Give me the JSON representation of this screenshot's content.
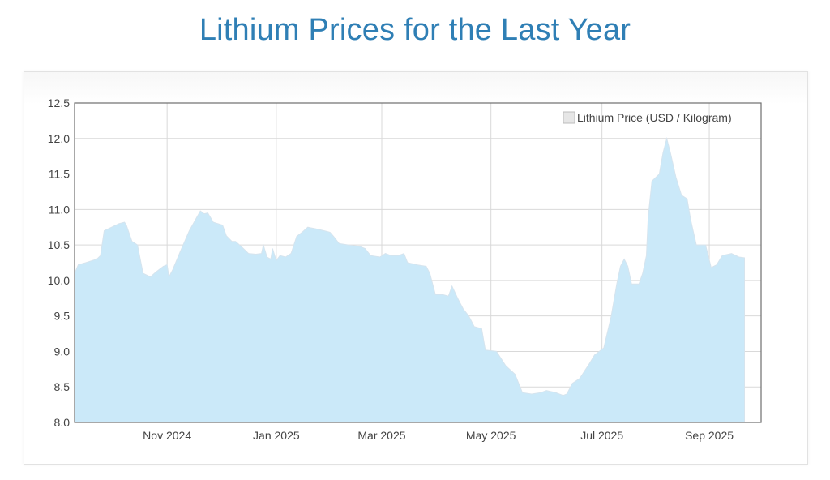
{
  "page": {
    "title": "Lithium Prices for the Last Year"
  },
  "colors": {
    "title": "#2f7fb5",
    "area_fill": "#cbe9f9",
    "area_stroke": "#d6e4ee",
    "grid": "#d9d9d9",
    "frame": "#6e6e6e"
  },
  "chart_data": {
    "type": "area",
    "title": "Lithium Prices for the Last Year",
    "xlabel": "",
    "ylabel": "",
    "x_unit": "days since 2024-10-01",
    "xlim": [
      0,
      371
    ],
    "ylim": [
      8.0,
      12.5
    ],
    "grid": true,
    "legend_position": "top-right",
    "y_ticks": [
      "12.5",
      "12.0",
      "11.5",
      "11.0",
      "10.5",
      "10.0",
      "9.5",
      "9.0",
      "8.5",
      "8.0"
    ],
    "y_tick_values": [
      12.5,
      12.0,
      11.5,
      11.0,
      10.5,
      10.0,
      9.5,
      9.0,
      8.5,
      8.0
    ],
    "x_ticks": [
      {
        "label": "Nov 2024",
        "x": 50
      },
      {
        "label": "Jan 2025",
        "x": 109
      },
      {
        "label": "Mar 2025",
        "x": 166
      },
      {
        "label": "May 2025",
        "x": 225
      },
      {
        "label": "Jul 2025",
        "x": 285
      },
      {
        "label": "Sep 2025",
        "x": 343
      }
    ],
    "series": [
      {
        "name": "Lithium Price (USD / Kilogram)",
        "points": [
          [
            0,
            10.1
          ],
          [
            2,
            10.22
          ],
          [
            6,
            10.25
          ],
          [
            12,
            10.3
          ],
          [
            14,
            10.35
          ],
          [
            16,
            10.7
          ],
          [
            20,
            10.75
          ],
          [
            24,
            10.8
          ],
          [
            27,
            10.82
          ],
          [
            28,
            10.78
          ],
          [
            31,
            10.55
          ],
          [
            34,
            10.5
          ],
          [
            37,
            10.1
          ],
          [
            41,
            10.05
          ],
          [
            44,
            10.12
          ],
          [
            48,
            10.2
          ],
          [
            50,
            10.22
          ],
          [
            51,
            10.05
          ],
          [
            53,
            10.15
          ],
          [
            57,
            10.4
          ],
          [
            62,
            10.7
          ],
          [
            68,
            10.98
          ],
          [
            70,
            10.94
          ],
          [
            72,
            10.95
          ],
          [
            75,
            10.82
          ],
          [
            80,
            10.78
          ],
          [
            82,
            10.63
          ],
          [
            85,
            10.55
          ],
          [
            87,
            10.55
          ],
          [
            90,
            10.48
          ],
          [
            94,
            10.38
          ],
          [
            98,
            10.37
          ],
          [
            101,
            10.38
          ],
          [
            102,
            10.5
          ],
          [
            104,
            10.33
          ],
          [
            106,
            10.3
          ],
          [
            107,
            10.45
          ],
          [
            109,
            10.28
          ],
          [
            111,
            10.35
          ],
          [
            114,
            10.33
          ],
          [
            117,
            10.38
          ],
          [
            120,
            10.62
          ],
          [
            123,
            10.68
          ],
          [
            126,
            10.75
          ],
          [
            130,
            10.73
          ],
          [
            135,
            10.7
          ],
          [
            138,
            10.68
          ],
          [
            140,
            10.62
          ],
          [
            143,
            10.52
          ],
          [
            148,
            10.5
          ],
          [
            154,
            10.48
          ],
          [
            157,
            10.45
          ],
          [
            160,
            10.35
          ],
          [
            165,
            10.33
          ],
          [
            168,
            10.38
          ],
          [
            171,
            10.35
          ],
          [
            175,
            10.35
          ],
          [
            178,
            10.38
          ],
          [
            180,
            10.25
          ],
          [
            185,
            10.22
          ],
          [
            190,
            10.2
          ],
          [
            192,
            10.1
          ],
          [
            195,
            9.8
          ],
          [
            199,
            9.8
          ],
          [
            202,
            9.78
          ],
          [
            204,
            9.92
          ],
          [
            207,
            9.75
          ],
          [
            210,
            9.6
          ],
          [
            213,
            9.5
          ],
          [
            216,
            9.35
          ],
          [
            220,
            9.32
          ],
          [
            222,
            9.02
          ],
          [
            228,
            9.0
          ],
          [
            233,
            8.8
          ],
          [
            235,
            8.75
          ],
          [
            238,
            8.68
          ],
          [
            242,
            8.42
          ],
          [
            247,
            8.4
          ],
          [
            252,
            8.42
          ],
          [
            255,
            8.45
          ],
          [
            260,
            8.42
          ],
          [
            264,
            8.38
          ],
          [
            266,
            8.4
          ],
          [
            269,
            8.55
          ],
          [
            273,
            8.62
          ],
          [
            278,
            8.82
          ],
          [
            281,
            8.95
          ],
          [
            286,
            9.05
          ],
          [
            290,
            9.5
          ],
          [
            293,
            9.95
          ],
          [
            295,
            10.2
          ],
          [
            297,
            10.3
          ],
          [
            299,
            10.2
          ],
          [
            301,
            9.95
          ],
          [
            305,
            9.95
          ],
          [
            307,
            10.1
          ],
          [
            309,
            10.35
          ],
          [
            310,
            10.9
          ],
          [
            312,
            11.4
          ],
          [
            316,
            11.5
          ],
          [
            318,
            11.8
          ],
          [
            320,
            12.0
          ],
          [
            322,
            11.8
          ],
          [
            325,
            11.45
          ],
          [
            328,
            11.2
          ],
          [
            331,
            11.15
          ],
          [
            333,
            10.85
          ],
          [
            336,
            10.5
          ],
          [
            341,
            10.5
          ],
          [
            344,
            10.18
          ],
          [
            347,
            10.22
          ],
          [
            350,
            10.35
          ],
          [
            355,
            10.38
          ],
          [
            359,
            10.33
          ],
          [
            362,
            10.32
          ]
        ]
      }
    ]
  }
}
